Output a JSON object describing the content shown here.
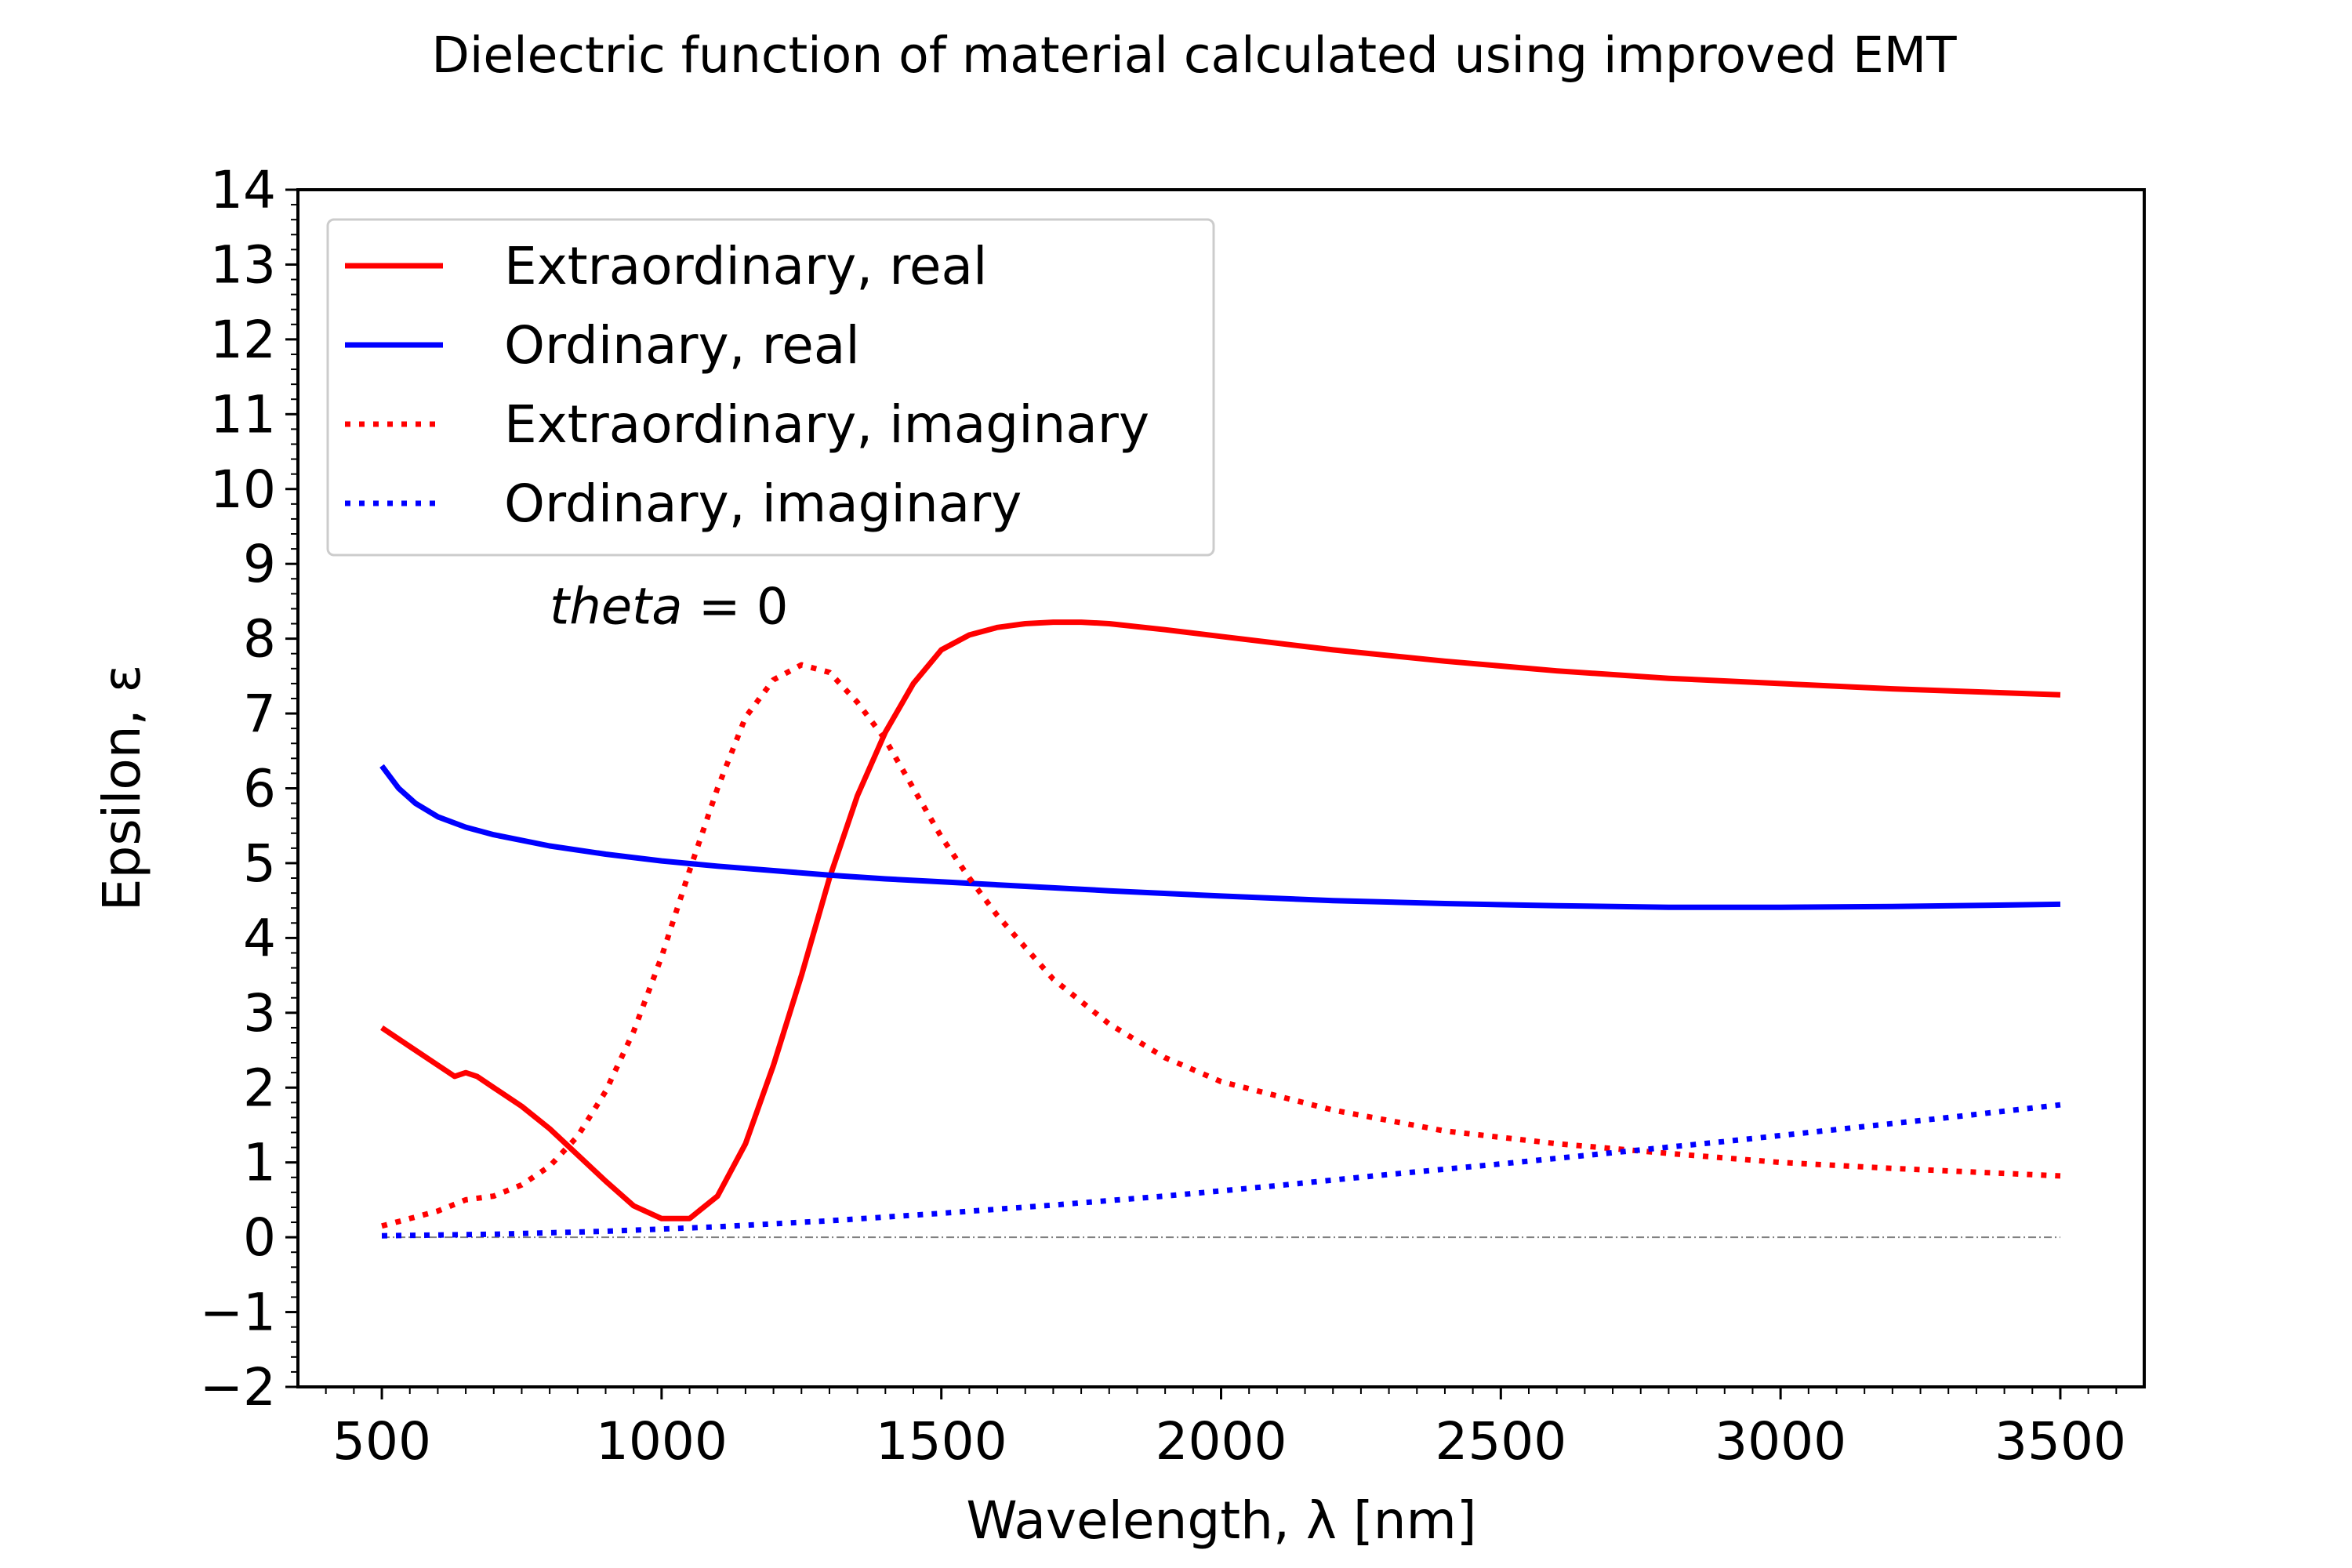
{
  "chart_data": {
    "type": "line",
    "title": "Dielectric function of material calculated using improved EMT",
    "xlabel": "Wavelength, λ [nm]",
    "ylabel": "Epsilon, ε",
    "xlim": [
      350,
      3650
    ],
    "ylim": [
      -2,
      14
    ],
    "xticks": [
      500,
      1000,
      1500,
      2000,
      2500,
      3000,
      3500
    ],
    "xtick_labels": [
      "500",
      "1000",
      "1500",
      "2000",
      "2500",
      "3000",
      "3500"
    ],
    "yticks": [
      -2,
      -1,
      0,
      1,
      2,
      3,
      4,
      5,
      6,
      7,
      8,
      9,
      10,
      11,
      12,
      13,
      14
    ],
    "ytick_labels": [
      "−2",
      "−1",
      "0",
      "1",
      "2",
      "3",
      "4",
      "5",
      "6",
      "7",
      "8",
      "9",
      "10",
      "11",
      "12",
      "13",
      "14"
    ],
    "legend_position": "top-left",
    "annotation": {
      "var": "theta",
      "rest": " = 0",
      "x": 800,
      "y": 8.2
    },
    "zero_line": {
      "y": 0,
      "x_from": 500,
      "x_to": 3500,
      "color": "#808080"
    },
    "series": [
      {
        "name": "Extraordinary, real",
        "color": "#ff0000",
        "style": "solid",
        "x": [
          500,
          550,
          600,
          630,
          650,
          670,
          700,
          750,
          800,
          850,
          900,
          950,
          1000,
          1050,
          1100,
          1150,
          1200,
          1250,
          1300,
          1350,
          1400,
          1450,
          1500,
          1550,
          1600,
          1650,
          1700,
          1750,
          1800,
          1900,
          2000,
          2200,
          2400,
          2600,
          2800,
          3000,
          3200,
          3500
        ],
        "y": [
          2.8,
          2.55,
          2.3,
          2.15,
          2.2,
          2.15,
          2.0,
          1.75,
          1.45,
          1.1,
          0.75,
          0.42,
          0.25,
          0.25,
          0.55,
          1.25,
          2.3,
          3.5,
          4.8,
          5.9,
          6.75,
          7.4,
          7.85,
          8.05,
          8.15,
          8.2,
          8.22,
          8.22,
          8.2,
          8.12,
          8.03,
          7.85,
          7.7,
          7.57,
          7.47,
          7.4,
          7.33,
          7.25
        ]
      },
      {
        "name": "Ordinary, real",
        "color": "#0000ff",
        "style": "solid",
        "x": [
          500,
          530,
          560,
          600,
          650,
          700,
          800,
          900,
          1000,
          1100,
          1200,
          1300,
          1400,
          1500,
          1600,
          1800,
          2000,
          2200,
          2400,
          2600,
          2800,
          3000,
          3200,
          3500
        ],
        "y": [
          6.3,
          6.0,
          5.8,
          5.62,
          5.48,
          5.38,
          5.23,
          5.12,
          5.03,
          4.96,
          4.9,
          4.84,
          4.79,
          4.75,
          4.71,
          4.63,
          4.56,
          4.5,
          4.46,
          4.43,
          4.41,
          4.41,
          4.42,
          4.45
        ]
      },
      {
        "name": "Extraordinary, imaginary",
        "color": "#ff0000",
        "style": "dotted",
        "x": [
          500,
          550,
          600,
          650,
          700,
          750,
          800,
          850,
          900,
          950,
          1000,
          1050,
          1100,
          1150,
          1200,
          1250,
          1300,
          1350,
          1400,
          1450,
          1500,
          1550,
          1600,
          1700,
          1800,
          1900,
          2000,
          2200,
          2400,
          2600,
          2800,
          3000,
          3200,
          3500
        ],
        "y": [
          0.15,
          0.25,
          0.35,
          0.5,
          0.55,
          0.7,
          0.95,
          1.35,
          1.95,
          2.75,
          3.75,
          4.9,
          6.0,
          6.95,
          7.45,
          7.65,
          7.55,
          7.15,
          6.65,
          6.0,
          5.35,
          4.8,
          4.3,
          3.45,
          2.85,
          2.4,
          2.08,
          1.7,
          1.42,
          1.25,
          1.12,
          1.0,
          0.92,
          0.82
        ]
      },
      {
        "name": "Ordinary, imaginary",
        "color": "#0000ff",
        "style": "dotted",
        "x": [
          500,
          700,
          900,
          1100,
          1300,
          1500,
          1700,
          1900,
          2100,
          2300,
          2500,
          2700,
          2900,
          3100,
          3300,
          3500
        ],
        "y": [
          0.02,
          0.04,
          0.08,
          0.14,
          0.22,
          0.32,
          0.43,
          0.55,
          0.69,
          0.84,
          0.98,
          1.13,
          1.28,
          1.44,
          1.6,
          1.77
        ]
      }
    ]
  }
}
